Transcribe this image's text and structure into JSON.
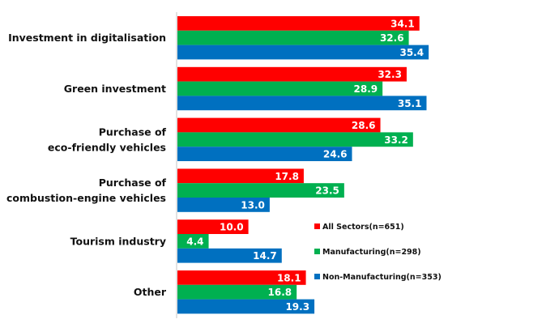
{
  "chart_data": {
    "type": "bar",
    "orientation": "horizontal",
    "title": "",
    "xlabel": "",
    "ylabel": "",
    "xlim": [
      0,
      40
    ],
    "grid": false,
    "legend_position": "right",
    "categories": [
      [
        "Investment in digitalisation"
      ],
      [
        "Green investment"
      ],
      [
        "Purchase of",
        "eco-friendly vehicles"
      ],
      [
        "Purchase of",
        "combustion-engine vehicles"
      ],
      [
        "Tourism industry"
      ],
      [
        "Other"
      ]
    ],
    "series": [
      {
        "name": "All Sectors(n=651)",
        "color": "#ff0000",
        "values": [
          34.1,
          32.3,
          28.6,
          17.8,
          10.0,
          18.1
        ]
      },
      {
        "name": "Manufacturing(n=298)",
        "color": "#00b050",
        "values": [
          32.6,
          28.9,
          33.2,
          23.5,
          4.4,
          16.8
        ]
      },
      {
        "name": "Non-Manufacturing(n=353)",
        "color": "#0070c0",
        "values": [
          35.4,
          35.1,
          24.6,
          13.0,
          14.7,
          19.3
        ]
      }
    ],
    "value_format": "0.0"
  }
}
